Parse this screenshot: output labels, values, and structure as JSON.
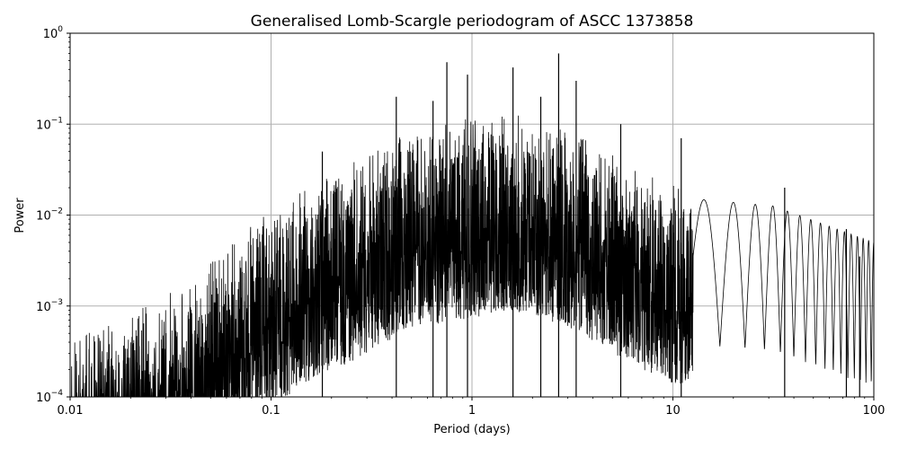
{
  "chart_data": {
    "type": "line",
    "title": "Generalised Lomb-Scargle periodogram of ASCC 1373858",
    "xlabel": "Period (days)",
    "ylabel": "Power",
    "xscale": "log",
    "yscale": "log",
    "xlim": [
      0.01,
      100
    ],
    "ylim": [
      0.0001,
      1
    ],
    "grid": true,
    "line_color": "#000000",
    "x_ticks": [
      {
        "value": 0.01,
        "label": "0.01"
      },
      {
        "value": 0.1,
        "label": "0.1"
      },
      {
        "value": 1,
        "label": "1"
      },
      {
        "value": 10,
        "label": "10"
      },
      {
        "value": 100,
        "label": "100"
      }
    ],
    "y_ticks": [
      {
        "value": 0.0001,
        "base": "10",
        "exp": "−4"
      },
      {
        "value": 0.001,
        "base": "10",
        "exp": "−3"
      },
      {
        "value": 0.01,
        "base": "10",
        "exp": "−2"
      },
      {
        "value": 0.1,
        "base": "10",
        "exp": "−1"
      },
      {
        "value": 1,
        "base": "10",
        "exp": "0"
      }
    ],
    "peaks": [
      {
        "period": 2.7,
        "power": 0.6
      },
      {
        "period": 1.6,
        "power": 0.42
      },
      {
        "period": 0.75,
        "power": 0.48
      },
      {
        "period": 0.95,
        "power": 0.35
      },
      {
        "period": 3.3,
        "power": 0.3
      },
      {
        "period": 2.2,
        "power": 0.2
      },
      {
        "period": 0.42,
        "power": 0.2
      },
      {
        "period": 0.64,
        "power": 0.18
      },
      {
        "period": 5.5,
        "power": 0.1
      },
      {
        "period": 0.18,
        "power": 0.05
      },
      {
        "period": 11,
        "power": 0.07
      },
      {
        "period": 36,
        "power": 0.02
      },
      {
        "period": 73,
        "power": 0.007
      },
      {
        "period": 85,
        "power": 0.0035
      }
    ]
  }
}
